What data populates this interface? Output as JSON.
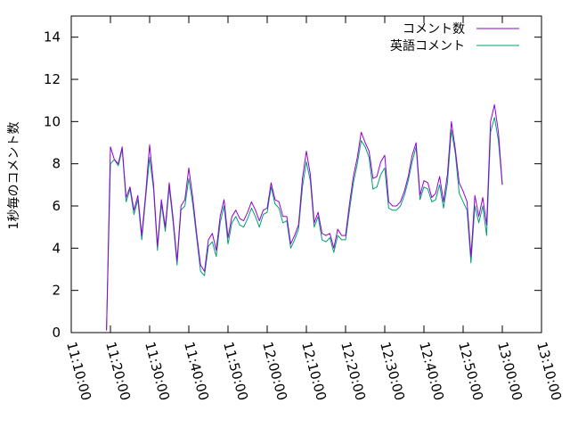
{
  "chart_data": {
    "type": "line",
    "title": "",
    "xlabel": "",
    "ylabel": "1秒毎のコメント数",
    "ylim": [
      0,
      15
    ],
    "yticks": [
      0,
      2,
      4,
      6,
      8,
      10,
      12,
      14
    ],
    "xlim": [
      "11:10:00",
      "13:10:00"
    ],
    "xticks": [
      "11:10:00",
      "11:20:00",
      "11:30:00",
      "11:40:00",
      "11:50:00",
      "12:00:00",
      "12:10:00",
      "12:20:00",
      "12:30:00",
      "12:40:00",
      "12:50:00",
      "13:00:00",
      "13:10:00"
    ],
    "grid": false,
    "legend_position": "top-right",
    "x_step_seconds": 60,
    "x_start": "11:19:00",
    "series": [
      {
        "name": "コメント数",
        "color": "#9400d3",
        "values": [
          0.1,
          8.8,
          8.2,
          8.0,
          8.8,
          6.4,
          6.9,
          5.8,
          6.5,
          4.6,
          6.6,
          8.9,
          7.0,
          4.1,
          6.3,
          5.0,
          7.1,
          5.4,
          3.4,
          6.0,
          6.3,
          7.8,
          6.4,
          4.7,
          3.2,
          2.9,
          4.4,
          4.7,
          3.9,
          5.5,
          6.3,
          4.5,
          5.5,
          5.8,
          5.4,
          5.3,
          5.7,
          6.2,
          5.8,
          5.3,
          5.8,
          5.9,
          7.1,
          6.3,
          6.2,
          5.5,
          5.5,
          4.2,
          4.6,
          5.1,
          7.3,
          8.6,
          7.5,
          5.2,
          5.7,
          4.7,
          4.6,
          4.7,
          4.0,
          4.9,
          4.6,
          4.6,
          6.1,
          7.4,
          8.3,
          9.5,
          9.0,
          8.6,
          7.3,
          7.4,
          8.1,
          8.4,
          6.2,
          6.0,
          6.0,
          6.2,
          6.7,
          7.4,
          8.4,
          9.0,
          6.5,
          7.2,
          7.1,
          6.4,
          6.6,
          7.4,
          6.2,
          7.5,
          10.0,
          8.7,
          7.1,
          6.7,
          6.2,
          3.6,
          6.5,
          5.5,
          6.4,
          5.1,
          10.0,
          10.8,
          9.5,
          7.0
        ]
      },
      {
        "name": "英語コメント",
        "color": "#009e73",
        "values": [
          0.1,
          8.0,
          8.2,
          7.9,
          8.7,
          6.2,
          6.8,
          5.6,
          6.3,
          4.4,
          6.4,
          8.3,
          6.8,
          3.9,
          6.1,
          4.8,
          6.9,
          5.2,
          3.2,
          5.8,
          6.0,
          7.3,
          6.1,
          4.5,
          2.9,
          2.7,
          4.1,
          4.3,
          3.6,
          5.2,
          6.0,
          4.2,
          5.2,
          5.5,
          5.1,
          5.0,
          5.4,
          5.9,
          5.5,
          5.0,
          5.6,
          5.7,
          6.9,
          6.1,
          5.9,
          5.2,
          5.3,
          4.0,
          4.4,
          4.9,
          6.9,
          8.1,
          7.2,
          5.0,
          5.5,
          4.4,
          4.3,
          4.5,
          3.8,
          4.6,
          4.4,
          4.4,
          5.8,
          7.1,
          8.0,
          9.1,
          8.8,
          8.3,
          6.8,
          6.9,
          7.5,
          7.8,
          5.9,
          5.8,
          5.8,
          6.0,
          6.5,
          7.2,
          8.1,
          8.8,
          6.3,
          6.9,
          6.8,
          6.2,
          6.3,
          7.0,
          5.9,
          7.1,
          9.6,
          8.5,
          6.6,
          6.2,
          5.8,
          3.3,
          6.0,
          5.2,
          6.0,
          4.6,
          9.5,
          10.2,
          9.1,
          7.0
        ]
      }
    ]
  }
}
